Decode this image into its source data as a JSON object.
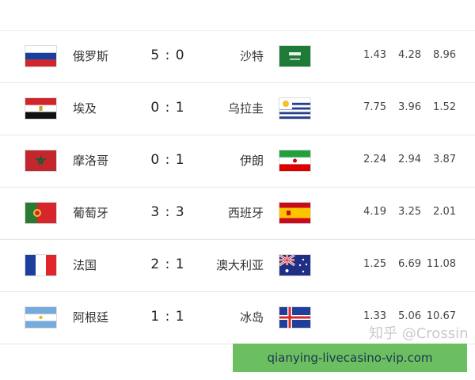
{
  "matches": [
    {
      "home": "俄罗斯",
      "home_flag": "russia-flag",
      "score": "5 : 0",
      "away": "沙特",
      "away_flag": "saudi-arabia-flag",
      "odds": [
        "1.43",
        "4.28",
        "8.96"
      ]
    },
    {
      "home": "埃及",
      "home_flag": "egypt-flag",
      "score": "0 : 1",
      "away": "乌拉圭",
      "away_flag": "uruguay-flag",
      "odds": [
        "7.75",
        "3.96",
        "1.52"
      ]
    },
    {
      "home": "摩洛哥",
      "home_flag": "morocco-flag",
      "score": "0 : 1",
      "away": "伊朗",
      "away_flag": "iran-flag",
      "odds": [
        "2.24",
        "2.94",
        "3.87"
      ]
    },
    {
      "home": "葡萄牙",
      "home_flag": "portugal-flag",
      "score": "3 : 3",
      "away": "西班牙",
      "away_flag": "spain-flag",
      "odds": [
        "4.19",
        "3.25",
        "2.01"
      ]
    },
    {
      "home": "法国",
      "home_flag": "france-flag",
      "score": "2 : 1",
      "away": "澳大利亚",
      "away_flag": "australia-flag",
      "odds": [
        "1.25",
        "6.69",
        "11.08"
      ]
    },
    {
      "home": "阿根廷",
      "home_flag": "argentina-flag",
      "score": "1 : 1",
      "away": "冰岛",
      "away_flag": "iceland-flag",
      "odds": [
        "1.33",
        "5.06",
        "10.67"
      ]
    }
  ],
  "watermark": "知乎 @Crossin",
  "banner": {
    "text": "qianying-livecasino-vip.com",
    "color": "#6cbf61"
  }
}
